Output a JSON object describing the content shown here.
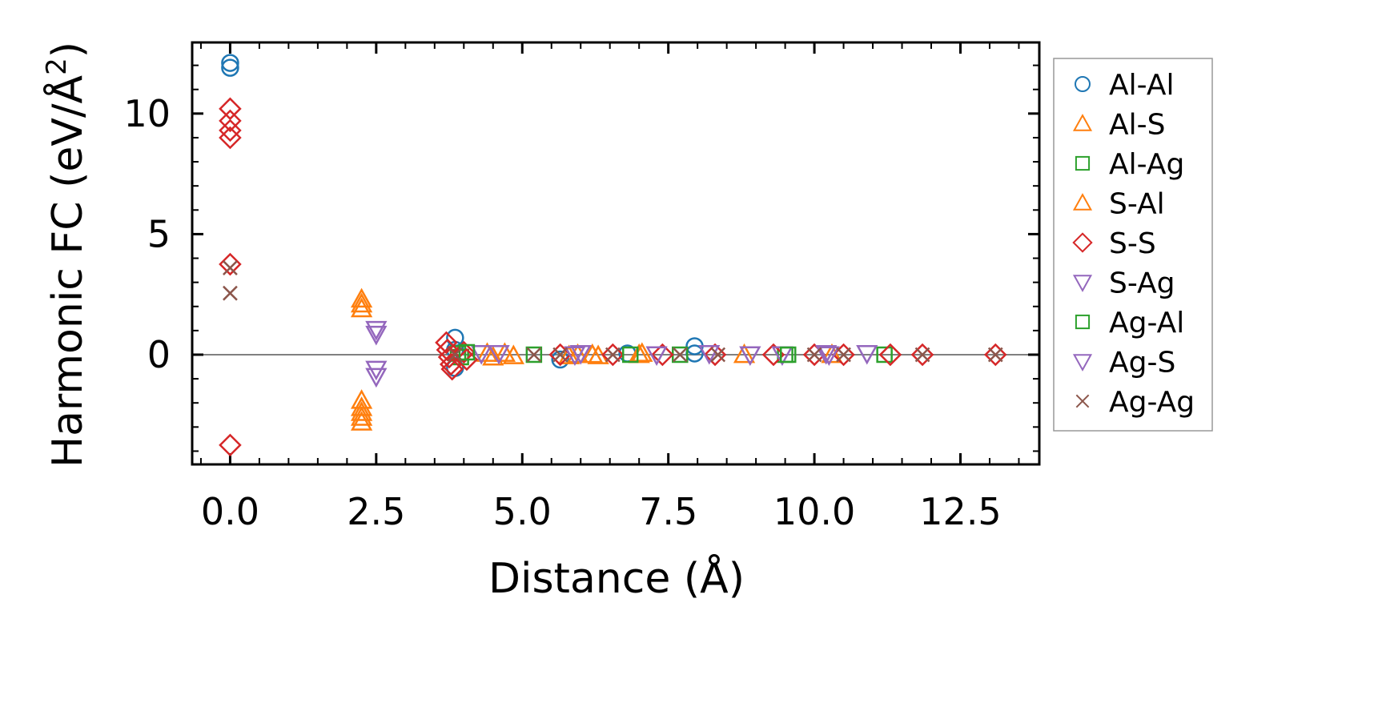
{
  "chart_data": {
    "type": "scatter",
    "xlabel": "Distance (Å)",
    "ylabel_main": "Harmonic FC (eV/Å",
    "ylabel_sup": "2",
    "ylabel_end": ")",
    "xlim": [
      -0.65,
      13.85
    ],
    "ylim": [
      -4.55,
      12.95
    ],
    "xticks": [
      0.0,
      2.5,
      5.0,
      7.5,
      10.0,
      12.5
    ],
    "xtick_labels": [
      "0.0",
      "2.5",
      "5.0",
      "7.5",
      "10.0",
      "12.5"
    ],
    "yticks": [
      0,
      5,
      10
    ],
    "ytick_labels": [
      "0",
      "5",
      "10"
    ],
    "x_minor_step": 0.5,
    "y_minor_step": 1,
    "reference_line_y": 0,
    "grid": false,
    "legend_position": "right-outside",
    "series": [
      {
        "name": "Al-Al",
        "marker": "circle",
        "color": "#1f77b4",
        "x": [
          0,
          0,
          3.85,
          3.85,
          3.85,
          5.65,
          6.8,
          7.95,
          7.95
        ],
        "y": [
          12.1,
          11.9,
          0.7,
          -0.55,
          0.2,
          -0.2,
          0.05,
          0.35,
          0.05
        ]
      },
      {
        "name": "Al-S",
        "marker": "triangle-up",
        "color": "#ff7f0e",
        "x": [
          2.25,
          2.25,
          2.25,
          2.25,
          2.25,
          2.25,
          2.25,
          2.25,
          4.5,
          4.7,
          5.8,
          6.2,
          7.0,
          8.8,
          10.3
        ],
        "y": [
          2.3,
          2.1,
          1.9,
          -1.9,
          -2.2,
          -2.4,
          -2.6,
          -2.8,
          -0.1,
          0.05,
          -0.05,
          0.0,
          0.0,
          0.0,
          0.0
        ]
      },
      {
        "name": "Al-Ag",
        "marker": "square",
        "color": "#2ca02c",
        "x": [
          3.9,
          3.95,
          5.2,
          7.7,
          9.5,
          11.2
        ],
        "y": [
          0.05,
          -0.1,
          0.0,
          0.0,
          0.0,
          0.0
        ]
      },
      {
        "name": "S-Al",
        "marker": "triangle-up",
        "color": "#ff7f0e",
        "x": [
          4.4,
          4.85,
          5.95,
          6.3,
          7.05
        ],
        "y": [
          0.05,
          -0.05,
          0.0,
          -0.05,
          0.05
        ]
      },
      {
        "name": "S-S",
        "marker": "diamond",
        "color": "#d62728",
        "x": [
          0,
          0,
          0,
          0,
          0,
          0,
          3.7,
          3.72,
          3.75,
          3.78,
          3.8,
          4.0,
          4.05,
          5.65,
          6.55,
          7.4,
          8.3,
          9.3,
          10.0,
          10.5,
          11.3,
          11.85,
          13.1
        ],
        "y": [
          10.2,
          9.7,
          9.3,
          9.0,
          3.75,
          -3.75,
          0.5,
          0.2,
          -0.1,
          -0.4,
          -0.6,
          0.1,
          -0.2,
          0.0,
          0.0,
          0.0,
          0.0,
          0.0,
          0.0,
          0.0,
          0.0,
          0.0,
          0.0
        ]
      },
      {
        "name": "S-Ag",
        "marker": "triangle-down",
        "color": "#9467bd",
        "x": [
          2.5,
          2.5,
          2.5,
          2.5,
          4.3,
          5.9,
          7.3,
          8.2,
          9.45,
          10.2,
          10.9
        ],
        "y": [
          1.05,
          0.85,
          -0.6,
          -0.9,
          0.05,
          0.0,
          0.0,
          0.05,
          0.0,
          0.05,
          0.05
        ]
      },
      {
        "name": "Ag-Al",
        "marker": "square",
        "color": "#2ca02c",
        "x": [
          4.05,
          6.85,
          9.55
        ],
        "y": [
          0.1,
          0.0,
          0.0
        ]
      },
      {
        "name": "Ag-S",
        "marker": "triangle-down",
        "color": "#9467bd",
        "x": [
          4.6,
          6.0,
          8.9,
          10.25
        ],
        "y": [
          0.05,
          0.05,
          0.0,
          0.0
        ]
      },
      {
        "name": "Ag-Ag",
        "marker": "x",
        "color": "#8c564b",
        "x": [
          0,
          0,
          3.85,
          5.2,
          5.65,
          6.55,
          7.7,
          8.35,
          10.0,
          10.5,
          11.85,
          13.1
        ],
        "y": [
          3.6,
          2.55,
          0.0,
          0.0,
          0.0,
          0.0,
          0.0,
          0.0,
          0.0,
          0.0,
          0.0,
          0.0
        ]
      }
    ]
  }
}
